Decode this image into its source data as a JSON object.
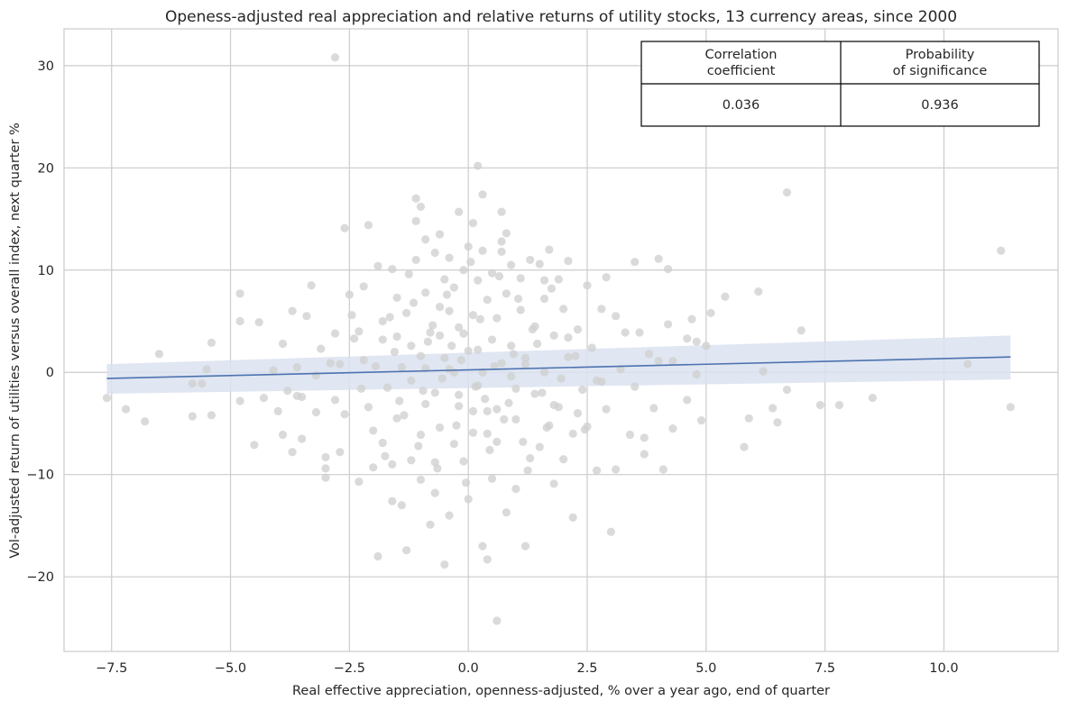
{
  "chart_data": {
    "type": "scatter",
    "title": "Openess-adjusted real appreciation and relative returns of utility stocks, 13 currency areas, since 2000",
    "xlabel": "Real effective appreciation, openness-adjusted, % over a year ago, end of quarter",
    "ylabel": "Vol-adjusted return of utilities versus overall index, next quarter %",
    "xlim": [
      -8.5,
      12.4
    ],
    "ylim": [
      -27.3,
      33.6
    ],
    "x_ticks": [
      -7.5,
      -5.0,
      -2.5,
      0.0,
      2.5,
      5.0,
      7.5,
      10.0
    ],
    "x_tick_labels": [
      "−7.5",
      "−5.0",
      "−2.5",
      "0.0",
      "2.5",
      "5.0",
      "7.5",
      "10.0"
    ],
    "y_ticks": [
      -20,
      -10,
      0,
      10,
      20,
      30
    ],
    "y_tick_labels": [
      "−20",
      "−10",
      "0",
      "10",
      "20",
      "30"
    ],
    "grid": true,
    "point_color": "#cfcfcf",
    "line_color": "#4c72b0",
    "band_color": "#dbe2f0",
    "regression": {
      "x": [
        -7.6,
        11.4
      ],
      "y": [
        -0.6,
        1.5
      ],
      "ci_lower": [
        -2.1,
        -0.7
      ],
      "ci_upper": [
        0.8,
        3.6
      ]
    },
    "stats_table": {
      "headers": [
        "Correlation\ncoefficient",
        "Probability\nof significance"
      ],
      "values": [
        "0.036",
        "0.936"
      ]
    },
    "points": [
      [
        -7.6,
        -2.5
      ],
      [
        -7.2,
        -3.6
      ],
      [
        -6.8,
        -4.8
      ],
      [
        -6.5,
        1.8
      ],
      [
        -5.8,
        -4.3
      ],
      [
        -5.8,
        -1.1
      ],
      [
        -5.6,
        -1.1
      ],
      [
        -5.5,
        0.3
      ],
      [
        -5.4,
        2.9
      ],
      [
        -5.4,
        -4.2
      ],
      [
        -4.8,
        7.7
      ],
      [
        -4.8,
        -2.8
      ],
      [
        -4.8,
        5.0
      ],
      [
        -4.5,
        -7.1
      ],
      [
        -4.4,
        4.9
      ],
      [
        -4.3,
        -2.5
      ],
      [
        -4.1,
        0.2
      ],
      [
        -4.0,
        -3.8
      ],
      [
        -3.9,
        2.8
      ],
      [
        -3.9,
        -6.1
      ],
      [
        -3.8,
        -1.8
      ],
      [
        -3.7,
        6.0
      ],
      [
        -3.7,
        -7.8
      ],
      [
        -3.6,
        0.5
      ],
      [
        -3.6,
        -2.3
      ],
      [
        -3.5,
        -6.5
      ],
      [
        -3.5,
        -2.4
      ],
      [
        -3.4,
        5.5
      ],
      [
        -3.3,
        8.5
      ],
      [
        -3.2,
        -0.3
      ],
      [
        -3.2,
        -3.9
      ],
      [
        -3.1,
        2.3
      ],
      [
        -3.0,
        -10.3
      ],
      [
        -3.0,
        -9.4
      ],
      [
        -3.0,
        -8.3
      ],
      [
        -2.9,
        0.9
      ],
      [
        -2.8,
        3.8
      ],
      [
        -2.8,
        -2.7
      ],
      [
        -2.8,
        30.8
      ],
      [
        -2.7,
        -7.8
      ],
      [
        -2.6,
        14.1
      ],
      [
        -2.6,
        -4.1
      ],
      [
        -2.5,
        7.6
      ],
      [
        -2.4,
        3.3
      ],
      [
        -2.3,
        -10.7
      ],
      [
        -2.2,
        8.4
      ],
      [
        -2.2,
        1.2
      ],
      [
        -2.1,
        14.4
      ],
      [
        -2.0,
        -9.3
      ],
      [
        -2.0,
        -5.7
      ],
      [
        -1.9,
        10.4
      ],
      [
        -1.9,
        -18.0
      ],
      [
        -1.8,
        5.0
      ],
      [
        -1.8,
        -6.9
      ],
      [
        -1.7,
        -1.5
      ],
      [
        -1.6,
        10.1
      ],
      [
        -1.6,
        -12.6
      ],
      [
        -1.5,
        7.3
      ],
      [
        -1.5,
        3.5
      ],
      [
        -1.5,
        -4.5
      ],
      [
        -1.4,
        0.5
      ],
      [
        -1.4,
        -13.0
      ],
      [
        -1.3,
        5.8
      ],
      [
        -1.3,
        -17.4
      ],
      [
        -1.2,
        2.6
      ],
      [
        -1.2,
        -8.6
      ],
      [
        -1.1,
        17.0
      ],
      [
        -1.1,
        14.8
      ],
      [
        -1.1,
        11.0
      ],
      [
        -1.0,
        16.2
      ],
      [
        -1.0,
        -10.5
      ],
      [
        -1.0,
        -6.1
      ],
      [
        -0.9,
        13.0
      ],
      [
        -0.9,
        7.8
      ],
      [
        -0.9,
        -3.1
      ],
      [
        -0.8,
        3.9
      ],
      [
        -0.8,
        -14.9
      ],
      [
        -0.7,
        11.7
      ],
      [
        -0.7,
        -2.0
      ],
      [
        -0.7,
        -8.8
      ],
      [
        -0.6,
        13.5
      ],
      [
        -0.6,
        6.4
      ],
      [
        -0.6,
        -5.4
      ],
      [
        -0.5,
        9.1
      ],
      [
        -0.5,
        1.4
      ],
      [
        -0.5,
        -18.8
      ],
      [
        -0.4,
        11.2
      ],
      [
        -0.4,
        -14.0
      ],
      [
        -0.4,
        0.3
      ],
      [
        -0.3,
        8.3
      ],
      [
        -0.3,
        -7.0
      ],
      [
        -0.2,
        15.7
      ],
      [
        -0.2,
        4.4
      ],
      [
        -0.2,
        -3.3
      ],
      [
        -0.1,
        10.0
      ],
      [
        -0.1,
        -8.7
      ],
      [
        0.0,
        12.3
      ],
      [
        0.0,
        2.1
      ],
      [
        0.0,
        -12.4
      ],
      [
        0.1,
        14.6
      ],
      [
        0.1,
        5.6
      ],
      [
        0.1,
        -5.9
      ],
      [
        0.2,
        20.2
      ],
      [
        0.2,
        9.0
      ],
      [
        0.2,
        -1.3
      ],
      [
        0.3,
        17.4
      ],
      [
        0.3,
        11.9
      ],
      [
        0.3,
        -17.0
      ],
      [
        0.4,
        7.1
      ],
      [
        0.4,
        -18.3
      ],
      [
        0.4,
        -3.8
      ],
      [
        0.5,
        9.7
      ],
      [
        0.5,
        3.2
      ],
      [
        0.5,
        -10.4
      ],
      [
        0.6,
        5.3
      ],
      [
        0.6,
        -24.3
      ],
      [
        0.6,
        -6.8
      ],
      [
        0.7,
        15.7
      ],
      [
        0.7,
        12.8
      ],
      [
        0.7,
        0.9
      ],
      [
        0.8,
        13.6
      ],
      [
        0.8,
        -13.7
      ],
      [
        0.8,
        7.7
      ],
      [
        0.9,
        10.5
      ],
      [
        0.9,
        2.6
      ],
      [
        1.0,
        -4.6
      ],
      [
        1.0,
        -11.4
      ],
      [
        1.1,
        9.2
      ],
      [
        1.1,
        6.1
      ],
      [
        1.2,
        -17.0
      ],
      [
        1.2,
        1.4
      ],
      [
        1.3,
        11.0
      ],
      [
        1.3,
        -8.4
      ],
      [
        1.4,
        4.5
      ],
      [
        1.4,
        -2.1
      ],
      [
        1.5,
        10.6
      ],
      [
        1.5,
        -7.3
      ],
      [
        1.6,
        7.2
      ],
      [
        1.6,
        0.0
      ],
      [
        1.7,
        12.0
      ],
      [
        1.7,
        -5.2
      ],
      [
        1.8,
        3.6
      ],
      [
        1.8,
        -10.9
      ],
      [
        1.9,
        9.1
      ],
      [
        1.9,
        -3.4
      ],
      [
        2.0,
        6.2
      ],
      [
        2.0,
        -8.5
      ],
      [
        2.1,
        1.5
      ],
      [
        2.1,
        10.9
      ],
      [
        2.2,
        -6.0
      ],
      [
        2.2,
        -14.2
      ],
      [
        2.3,
        4.2
      ],
      [
        2.4,
        -1.7
      ],
      [
        2.5,
        8.5
      ],
      [
        2.5,
        -5.3
      ],
      [
        2.6,
        2.4
      ],
      [
        2.7,
        -9.6
      ],
      [
        2.8,
        6.2
      ],
      [
        2.8,
        -0.9
      ],
      [
        2.9,
        9.3
      ],
      [
        2.9,
        -3.6
      ],
      [
        3.0,
        -15.6
      ],
      [
        3.1,
        5.5
      ],
      [
        3.1,
        -9.5
      ],
      [
        3.2,
        0.3
      ],
      [
        3.3,
        3.9
      ],
      [
        3.4,
        -6.1
      ],
      [
        3.5,
        10.8
      ],
      [
        3.5,
        -1.4
      ],
      [
        3.6,
        3.9
      ],
      [
        3.7,
        -8.0
      ],
      [
        3.7,
        -6.4
      ],
      [
        3.8,
        1.8
      ],
      [
        3.9,
        -3.5
      ],
      [
        4.0,
        11.1
      ],
      [
        4.0,
        1.1
      ],
      [
        4.1,
        -9.5
      ],
      [
        4.2,
        10.1
      ],
      [
        4.2,
        4.7
      ],
      [
        4.3,
        -5.5
      ],
      [
        4.3,
        1.1
      ],
      [
        4.6,
        3.3
      ],
      [
        4.6,
        -2.7
      ],
      [
        4.7,
        5.2
      ],
      [
        4.8,
        3.0
      ],
      [
        4.8,
        -0.2
      ],
      [
        4.9,
        -4.7
      ],
      [
        5.0,
        2.6
      ],
      [
        5.1,
        5.8
      ],
      [
        5.4,
        7.4
      ],
      [
        5.8,
        -7.3
      ],
      [
        5.9,
        -4.5
      ],
      [
        6.1,
        7.9
      ],
      [
        6.2,
        0.1
      ],
      [
        6.4,
        -3.5
      ],
      [
        6.5,
        -4.9
      ],
      [
        6.7,
        17.6
      ],
      [
        6.7,
        -1.7
      ],
      [
        7.0,
        4.1
      ],
      [
        7.4,
        -3.2
      ],
      [
        7.8,
        -3.2
      ],
      [
        8.5,
        -2.5
      ],
      [
        10.5,
        0.8
      ],
      [
        11.2,
        11.9
      ],
      [
        11.4,
        -3.4
      ],
      [
        -0.15,
        1.2
      ],
      [
        0.15,
        -1.4
      ],
      [
        -0.35,
        2.6
      ],
      [
        0.35,
        -2.6
      ],
      [
        -0.55,
        -0.6
      ],
      [
        0.55,
        0.6
      ],
      [
        -0.75,
        4.6
      ],
      [
        0.75,
        -4.6
      ],
      [
        -0.95,
        -1.8
      ],
      [
        0.95,
        1.8
      ],
      [
        -1.15,
        6.8
      ],
      [
        1.15,
        -6.8
      ],
      [
        -1.35,
        -4.2
      ],
      [
        1.35,
        4.2
      ],
      [
        -1.55,
        2.0
      ],
      [
        1.55,
        -2.0
      ],
      [
        -1.75,
        -8.2
      ],
      [
        1.75,
        8.2
      ],
      [
        -1.95,
        0.6
      ],
      [
        1.95,
        -0.6
      ],
      [
        -0.25,
        -5.2
      ],
      [
        0.25,
        5.2
      ],
      [
        -0.45,
        7.6
      ],
      [
        0.45,
        -7.6
      ],
      [
        -0.65,
        -9.4
      ],
      [
        0.65,
        9.4
      ],
      [
        -0.85,
        3.0
      ],
      [
        0.85,
        -3.0
      ],
      [
        -1.05,
        -7.2
      ],
      [
        1.05,
        7.2
      ],
      [
        -1.25,
        9.6
      ],
      [
        1.25,
        -9.6
      ],
      [
        -1.45,
        -2.8
      ],
      [
        1.45,
        2.8
      ],
      [
        -1.65,
        5.4
      ],
      [
        1.65,
        -5.4
      ],
      [
        -2.25,
        -1.6
      ],
      [
        2.25,
        1.6
      ],
      [
        -2.45,
        5.6
      ],
      [
        2.45,
        -5.6
      ],
      [
        -0.05,
        -10.8
      ],
      [
        0.05,
        10.8
      ],
      [
        -0.3,
        0.0
      ],
      [
        0.3,
        0.0
      ],
      [
        -0.6,
        3.6
      ],
      [
        0.6,
        -3.6
      ],
      [
        -0.9,
        0.4
      ],
      [
        0.9,
        -0.4
      ],
      [
        -1.2,
        -0.8
      ],
      [
        1.2,
        0.8
      ],
      [
        -1.8,
        3.2
      ],
      [
        1.8,
        -3.2
      ],
      [
        -2.1,
        -3.4
      ],
      [
        2.1,
        3.4
      ],
      [
        -2.7,
        0.8
      ],
      [
        2.7,
        -0.8
      ],
      [
        -0.2,
        -2.2
      ],
      [
        0.2,
        2.2
      ],
      [
        -0.4,
        6.0
      ],
      [
        0.4,
        -6.0
      ],
      [
        -0.1,
        3.8
      ],
      [
        0.1,
        -3.8
      ],
      [
        -0.7,
        -11.8
      ],
      [
        0.7,
        11.8
      ],
      [
        -1.0,
        1.6
      ],
      [
        1.0,
        -1.6
      ],
      [
        -1.6,
        -9.0
      ],
      [
        1.6,
        9.0
      ],
      [
        -2.3,
        4.0
      ],
      [
        2.3,
        -4.0
      ]
    ]
  }
}
